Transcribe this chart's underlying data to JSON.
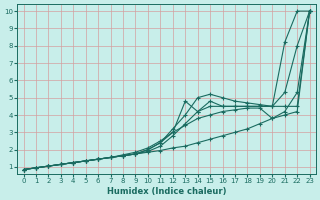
{
  "xlabel": "Humidex (Indice chaleur)",
  "bg_color": "#c8eeea",
  "grid_color": "#a8d8d4",
  "line_color": "#1a6b60",
  "xlim": [
    -0.5,
    23.5
  ],
  "ylim": [
    0.6,
    10.4
  ],
  "xticks": [
    0,
    1,
    2,
    3,
    4,
    5,
    6,
    7,
    8,
    9,
    10,
    11,
    12,
    13,
    14,
    15,
    16,
    17,
    18,
    19,
    20,
    21,
    22,
    23
  ],
  "yticks": [
    1,
    2,
    3,
    4,
    5,
    6,
    7,
    8,
    9,
    10
  ],
  "lines": [
    {
      "x": [
        0,
        1,
        2,
        3,
        4,
        5,
        6,
        7,
        8,
        9,
        10,
        11,
        12,
        13,
        14,
        15,
        16,
        17,
        18,
        19,
        20,
        21,
        22,
        23
      ],
      "y": [
        0.85,
        0.95,
        1.05,
        1.15,
        1.25,
        1.35,
        1.45,
        1.55,
        1.65,
        1.75,
        1.85,
        1.95,
        2.1,
        2.2,
        2.4,
        2.6,
        2.8,
        3.0,
        3.2,
        3.5,
        3.8,
        4.2,
        5.3,
        10.0
      ]
    },
    {
      "x": [
        0,
        1,
        2,
        3,
        4,
        5,
        6,
        7,
        8,
        9,
        10,
        11,
        12,
        13,
        14,
        15,
        16,
        17,
        18,
        19,
        20,
        21,
        22,
        23
      ],
      "y": [
        0.85,
        0.95,
        1.05,
        1.15,
        1.25,
        1.35,
        1.45,
        1.55,
        1.65,
        1.75,
        2.0,
        2.4,
        3.2,
        4.0,
        5.0,
        5.2,
        5.0,
        4.8,
        4.7,
        4.6,
        4.5,
        8.2,
        10.0,
        10.0
      ]
    },
    {
      "x": [
        0,
        1,
        2,
        3,
        4,
        5,
        6,
        7,
        8,
        9,
        10,
        11,
        12,
        13,
        14,
        15,
        16,
        17,
        18,
        19,
        20,
        21,
        22,
        23
      ],
      "y": [
        0.85,
        0.95,
        1.05,
        1.15,
        1.25,
        1.35,
        1.45,
        1.55,
        1.65,
        1.75,
        2.0,
        2.4,
        3.0,
        4.8,
        4.2,
        4.8,
        4.5,
        4.5,
        4.5,
        4.5,
        4.5,
        4.5,
        4.5,
        10.0
      ]
    },
    {
      "x": [
        0,
        1,
        2,
        3,
        4,
        5,
        6,
        7,
        8,
        9,
        10,
        11,
        12,
        13,
        14,
        15,
        16,
        17,
        18,
        19,
        20,
        21,
        22,
        23
      ],
      "y": [
        0.85,
        0.95,
        1.05,
        1.15,
        1.25,
        1.35,
        1.45,
        1.55,
        1.65,
        1.75,
        1.9,
        2.2,
        2.8,
        3.5,
        4.2,
        4.5,
        4.5,
        4.5,
        4.5,
        4.5,
        4.5,
        5.3,
        8.0,
        10.0
      ]
    },
    {
      "x": [
        0,
        1,
        2,
        3,
        4,
        5,
        6,
        7,
        8,
        9,
        10,
        11,
        12,
        13,
        14,
        15,
        16,
        17,
        18,
        19,
        20,
        21,
        22,
        23
      ],
      "y": [
        0.85,
        0.95,
        1.05,
        1.15,
        1.25,
        1.35,
        1.45,
        1.55,
        1.7,
        1.85,
        2.1,
        2.5,
        3.0,
        3.4,
        3.8,
        4.0,
        4.2,
        4.3,
        4.4,
        4.4,
        3.8,
        4.0,
        4.2,
        10.0
      ]
    }
  ]
}
